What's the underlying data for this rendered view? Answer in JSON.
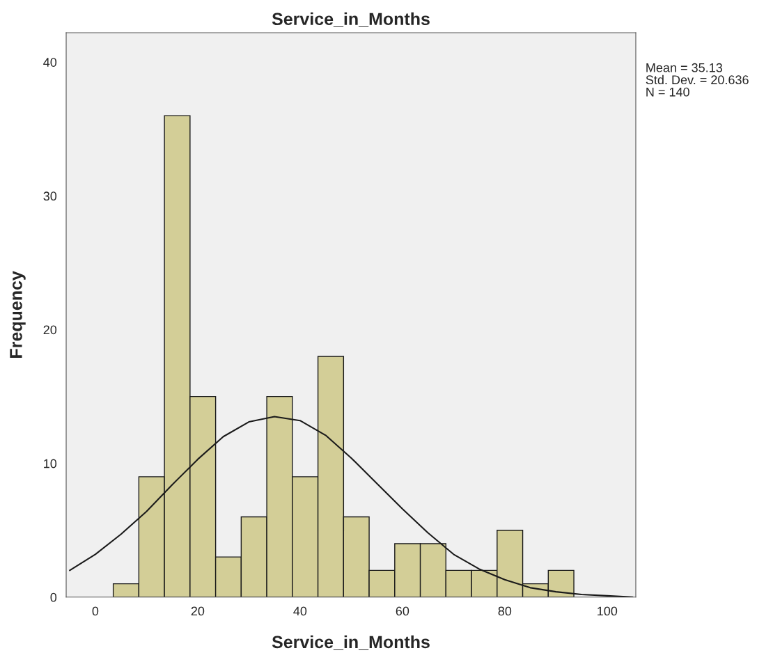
{
  "chart_data": {
    "type": "histogram",
    "title": "Service_in_Months",
    "xlabel": "Service_in_Months",
    "ylabel": "Frequency",
    "annotations": [
      "Mean = 35.13\nStd. Dev. = 20.636\nN = 140"
    ],
    "series": [
      {
        "color": "#d3ce97",
        "bins": [
          3.5,
          8.5,
          13.5,
          18.5,
          23.5,
          28.5,
          33.5,
          38.5,
          43.5,
          48.5,
          53.5,
          58.5,
          63.5,
          68.5,
          73.5,
          78.5,
          83.5,
          88.5,
          93.5
        ],
        "values": [
          1,
          9,
          36,
          15,
          3,
          6,
          15,
          9,
          18,
          6,
          2,
          4,
          4,
          2,
          2,
          5,
          1,
          2
        ]
      },
      {
        "type": "line",
        "color": "#1a1a1a",
        "x": [
          -5,
          0,
          5,
          10,
          15,
          20,
          25,
          30,
          35,
          40,
          45,
          50,
          55,
          60,
          65,
          70,
          75,
          80,
          85,
          90,
          95,
          100,
          105
        ],
        "values": [
          2.0,
          3.2,
          4.7,
          6.4,
          8.4,
          10.3,
          12.0,
          13.1,
          13.5,
          13.2,
          12.1,
          10.4,
          8.5,
          6.6,
          4.8,
          3.2,
          2.1,
          1.3,
          0.7,
          0.4,
          0.2,
          0.1,
          0.0
        ]
      }
    ],
    "xlim": [
      -5.7,
      105.6
    ],
    "ylim": [
      0,
      42.2
    ],
    "xticks": [
      0,
      20,
      40,
      60,
      80,
      100
    ],
    "yticks": [
      0,
      10,
      20,
      30,
      40
    ],
    "grid": false,
    "legend": false
  }
}
